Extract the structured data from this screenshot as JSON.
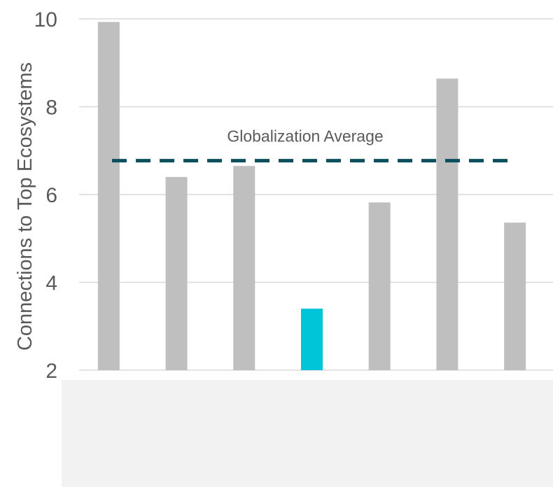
{
  "chart_data": {
    "type": "bar",
    "title": "",
    "xlabel": "",
    "ylabel": "Connections to Top Ecosystems",
    "ylim": [
      2,
      10
    ],
    "yticks": [
      2,
      4,
      6,
      8,
      10
    ],
    "grid": true,
    "categories": [
      "",
      "",
      "",
      "",
      "",
      "",
      ""
    ],
    "values": [
      9.93,
      6.4,
      6.65,
      3.4,
      5.82,
      8.64,
      5.36
    ],
    "bar_colors": [
      "#bfbfbf",
      "#bfbfbf",
      "#bfbfbf",
      "#00c4d8",
      "#bfbfbf",
      "#bfbfbf",
      "#bfbfbf"
    ],
    "reference_line": {
      "label": "Globalization Average",
      "value": 6.77,
      "color": "#0b4f5c",
      "style": "dashed"
    }
  },
  "colors": {
    "grid": "#d9d9d9",
    "text": "#5a5a5a",
    "panel": "#f2f2f2"
  }
}
